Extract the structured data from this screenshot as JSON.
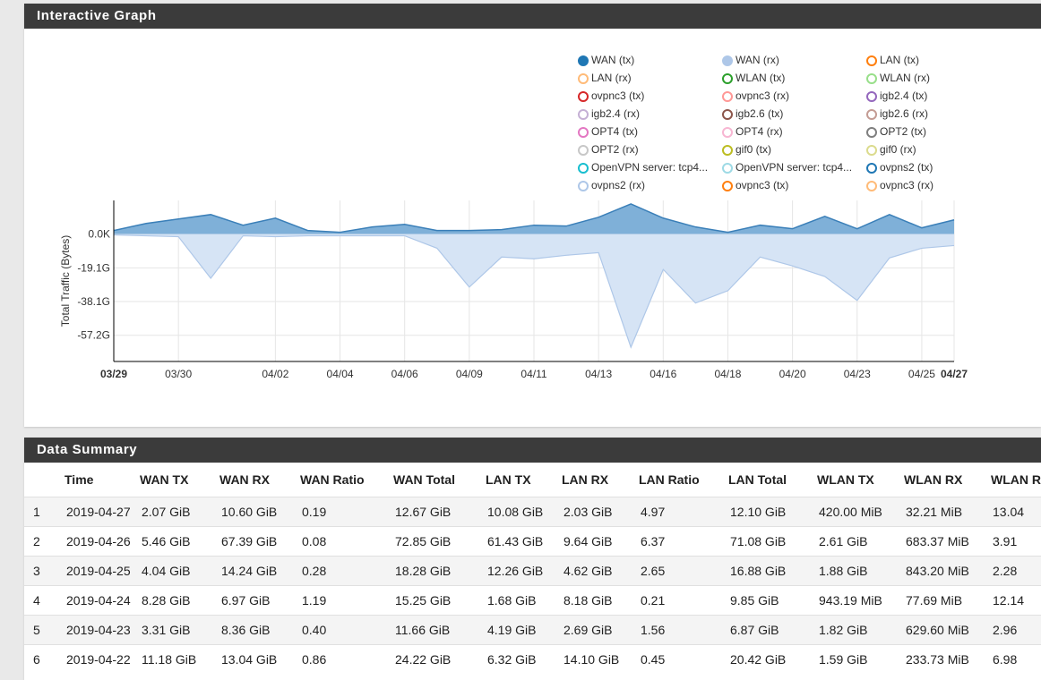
{
  "graph_panel": {
    "title": "Interactive Graph"
  },
  "summary_panel": {
    "title": "Data Summary"
  },
  "legend": [
    {
      "label": "WAN (tx)",
      "color": "#1f77b4",
      "filled": true
    },
    {
      "label": "WAN (rx)",
      "color": "#aec7e8",
      "filled": true
    },
    {
      "label": "LAN (tx)",
      "color": "#ff7f0e",
      "filled": false
    },
    {
      "label": "LAN (rx)",
      "color": "#ffbb78",
      "filled": false
    },
    {
      "label": "WLAN (tx)",
      "color": "#2ca02c",
      "filled": false
    },
    {
      "label": "WLAN (rx)",
      "color": "#98df8a",
      "filled": false
    },
    {
      "label": "ovpnc3 (tx)",
      "color": "#d62728",
      "filled": false
    },
    {
      "label": "ovpnc3 (rx)",
      "color": "#ff9896",
      "filled": false
    },
    {
      "label": "igb2.4 (tx)",
      "color": "#9467bd",
      "filled": false
    },
    {
      "label": "igb2.4 (rx)",
      "color": "#c5b0d5",
      "filled": false
    },
    {
      "label": "igb2.6 (tx)",
      "color": "#8c564b",
      "filled": false
    },
    {
      "label": "igb2.6 (rx)",
      "color": "#c49c94",
      "filled": false
    },
    {
      "label": "OPT4 (tx)",
      "color": "#e377c2",
      "filled": false
    },
    {
      "label": "OPT4 (rx)",
      "color": "#f7b6d2",
      "filled": false
    },
    {
      "label": "OPT2 (tx)",
      "color": "#7f7f7f",
      "filled": false
    },
    {
      "label": "OPT2 (rx)",
      "color": "#c7c7c7",
      "filled": false
    },
    {
      "label": "gif0 (tx)",
      "color": "#bcbd22",
      "filled": false
    },
    {
      "label": "gif0 (rx)",
      "color": "#dbdb8d",
      "filled": false
    },
    {
      "label": "OpenVPN server: tcp4...",
      "color": "#17becf",
      "filled": false
    },
    {
      "label": "OpenVPN server: tcp4...",
      "color": "#9edae5",
      "filled": false
    },
    {
      "label": "ovpns2 (tx)",
      "color": "#1f77b4",
      "filled": false
    },
    {
      "label": "ovpns2 (rx)",
      "color": "#aec7e8",
      "filled": false
    },
    {
      "label": "ovpnc3 (tx)",
      "color": "#ff7f0e",
      "filled": false
    },
    {
      "label": "ovpnc3 (rx)",
      "color": "#ffbb78",
      "filled": false
    }
  ],
  "chart_data": {
    "type": "area",
    "ylabel": "Total Traffic (Bytes)",
    "ylim": [
      -72,
      19
    ],
    "y_ticks": [
      {
        "value": 0,
        "label": "0.0K"
      },
      {
        "value": -19.1,
        "label": "-19.1G"
      },
      {
        "value": -38.1,
        "label": "-38.1G"
      },
      {
        "value": -57.2,
        "label": "-57.2G"
      }
    ],
    "x_ticks": [
      {
        "day": 0,
        "label": "03/29",
        "bold": true
      },
      {
        "day": 2,
        "label": "03/30",
        "bold": false
      },
      {
        "day": 5,
        "label": "04/02",
        "bold": false
      },
      {
        "day": 7,
        "label": "04/04",
        "bold": false
      },
      {
        "day": 9,
        "label": "04/06",
        "bold": false
      },
      {
        "day": 11,
        "label": "04/09",
        "bold": false
      },
      {
        "day": 13,
        "label": "04/11",
        "bold": false
      },
      {
        "day": 15,
        "label": "04/13",
        "bold": false
      },
      {
        "day": 17,
        "label": "04/16",
        "bold": false
      },
      {
        "day": 19,
        "label": "04/18",
        "bold": false
      },
      {
        "day": 21,
        "label": "04/20",
        "bold": false
      },
      {
        "day": 23,
        "label": "04/23",
        "bold": false
      },
      {
        "day": 25,
        "label": "04/25",
        "bold": false
      },
      {
        "day": 26,
        "label": "04/27",
        "bold": true
      }
    ],
    "x_range": [
      0,
      26
    ],
    "grid": true,
    "series": [
      {
        "name": "WAN (tx)",
        "color": "#1f77b4",
        "x": [
          0,
          1,
          2,
          3,
          4,
          5,
          6,
          7,
          8,
          9,
          10,
          11,
          12,
          13,
          14,
          15,
          16,
          17,
          18,
          19,
          20,
          21,
          22,
          23,
          24,
          25,
          26
        ],
        "values": [
          2.0,
          6.0,
          8.5,
          11.0,
          5.0,
          9.0,
          2.0,
          1.0,
          4.0,
          5.5,
          2.0,
          2.0,
          2.5,
          5.0,
          4.5,
          9.5,
          17.0,
          9.0,
          4.0,
          1.0,
          5.0,
          3.0,
          10.0,
          3.0,
          11.0,
          3.5,
          8.0
        ]
      },
      {
        "name": "WAN (rx)",
        "color": "#aec7e8",
        "x": [
          0,
          1,
          2,
          3,
          4,
          5,
          6,
          7,
          8,
          9,
          10,
          11,
          12,
          13,
          14,
          15,
          16,
          17,
          18,
          19,
          20,
          21,
          22,
          23,
          24,
          25,
          26
        ],
        "values": [
          -0.5,
          -1.0,
          -1.5,
          -25.0,
          -1.0,
          -1.5,
          -1.0,
          -1.0,
          -1.0,
          -1.0,
          -8.0,
          -30.0,
          -13.0,
          -14.0,
          -12.0,
          -10.5,
          -64.0,
          -20.0,
          -39.0,
          -32.0,
          -13.0,
          -18.0,
          -24.0,
          -37.5,
          -13.5,
          -8.0,
          -6.5
        ]
      }
    ]
  },
  "table": {
    "headers": [
      "",
      "Time",
      "WAN TX",
      "WAN RX",
      "WAN Ratio",
      "WAN Total",
      "LAN TX",
      "LAN RX",
      "LAN Ratio",
      "LAN Total",
      "WLAN TX",
      "WLAN RX",
      "WLAN Ra"
    ],
    "rows": [
      [
        "1",
        "2019-04-27",
        "2.07 GiB",
        "10.60 GiB",
        "0.19",
        "12.67 GiB",
        "10.08 GiB",
        "2.03 GiB",
        "4.97",
        "12.10 GiB",
        "420.00 MiB",
        "32.21 MiB",
        "13.04"
      ],
      [
        "2",
        "2019-04-26",
        "5.46 GiB",
        "67.39 GiB",
        "0.08",
        "72.85 GiB",
        "61.43 GiB",
        "9.64 GiB",
        "6.37",
        "71.08 GiB",
        "2.61 GiB",
        "683.37 MiB",
        "3.91"
      ],
      [
        "3",
        "2019-04-25",
        "4.04 GiB",
        "14.24 GiB",
        "0.28",
        "18.28 GiB",
        "12.26 GiB",
        "4.62 GiB",
        "2.65",
        "16.88 GiB",
        "1.88 GiB",
        "843.20 MiB",
        "2.28"
      ],
      [
        "4",
        "2019-04-24",
        "8.28 GiB",
        "6.97 GiB",
        "1.19",
        "15.25 GiB",
        "1.68 GiB",
        "8.18 GiB",
        "0.21",
        "9.85 GiB",
        "943.19 MiB",
        "77.69 MiB",
        "12.14"
      ],
      [
        "5",
        "2019-04-23",
        "3.31 GiB",
        "8.36 GiB",
        "0.40",
        "11.66 GiB",
        "4.19 GiB",
        "2.69 GiB",
        "1.56",
        "6.87 GiB",
        "1.82 GiB",
        "629.60 MiB",
        "2.96"
      ],
      [
        "6",
        "2019-04-22",
        "11.18 GiB",
        "13.04 GiB",
        "0.86",
        "24.22 GiB",
        "6.32 GiB",
        "14.10 GiB",
        "0.45",
        "20.42 GiB",
        "1.59 GiB",
        "233.73 MiB",
        "6.98"
      ]
    ]
  }
}
